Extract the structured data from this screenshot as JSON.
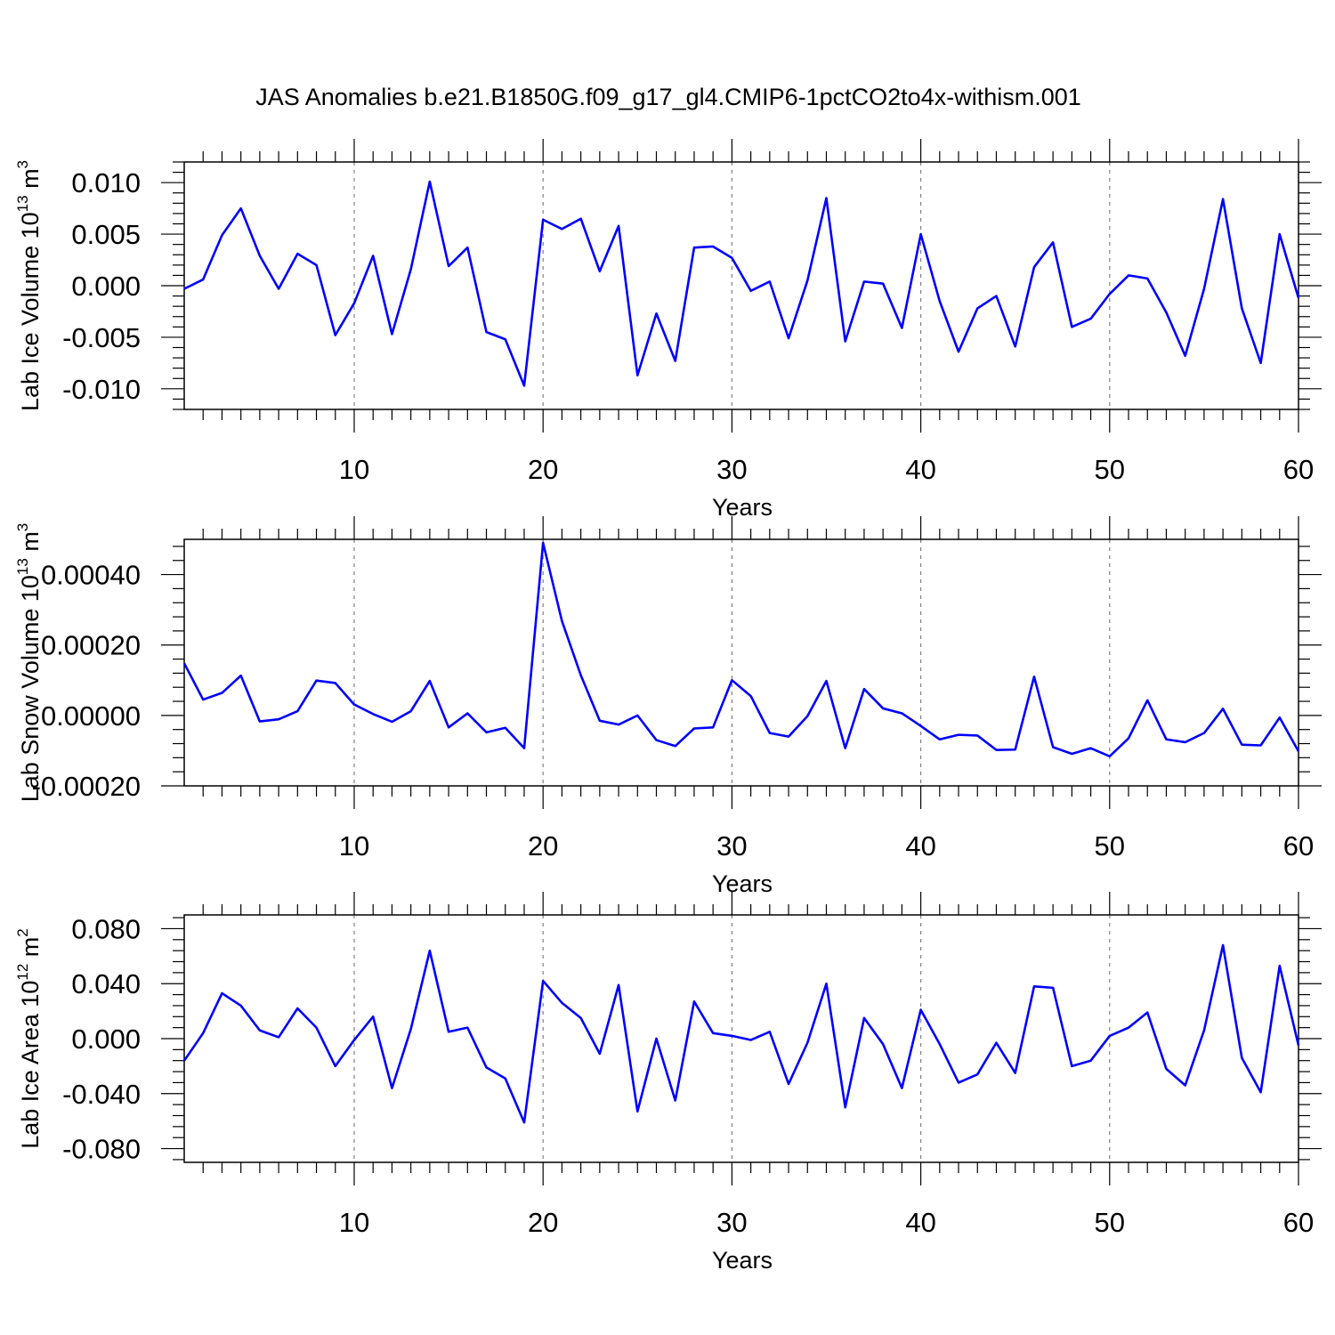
{
  "title": "JAS Anomalies b.e21.B1850G.f09_g17_gl4.CMIP6-1pctCO2to4x-withism.001",
  "colors": {
    "line": "#0000ff",
    "axis": "#000000",
    "grid": "#808080"
  },
  "chart_data": [
    {
      "type": "line",
      "ylabel": "Lab Ice Volume 10",
      "ylabel_sup": "13",
      "ylabel_unit": " m",
      "ylabel_unit_sup": "3",
      "xlabel": "Years",
      "xlim": [
        1,
        60
      ],
      "ylim": [
        -0.012,
        0.012
      ],
      "yticks": [
        -0.01,
        -0.005,
        0.0,
        0.005,
        0.01
      ],
      "ytick_labels": [
        "-0.010",
        "-0.005",
        "0.000",
        "0.005",
        "0.010"
      ],
      "xticks": [
        10,
        20,
        30,
        40,
        50,
        60
      ],
      "xtick_labels": [
        "10",
        "20",
        "30",
        "40",
        "50",
        "60"
      ],
      "grid_x": true,
      "series": [
        {
          "name": "Lab Ice Volume",
          "x_start": 1,
          "values": [
            -0.0003,
            0.0006,
            0.0049,
            0.0075,
            0.0029,
            -0.0003,
            0.0031,
            0.002,
            -0.0048,
            -0.0017,
            0.0029,
            -0.0047,
            0.0016,
            0.0101,
            0.0019,
            0.0037,
            -0.0045,
            -0.0052,
            -0.0097,
            0.0064,
            0.0055,
            0.0065,
            0.0014,
            0.0058,
            -0.0087,
            -0.0027,
            -0.0073,
            0.0037,
            0.0038,
            0.0027,
            -0.0005,
            0.0004,
            -0.0051,
            0.0005,
            0.0085,
            -0.0054,
            0.0004,
            0.0002,
            -0.0041,
            0.005,
            -0.0015,
            -0.0064,
            -0.0022,
            -0.001,
            -0.0059,
            0.0018,
            0.0042,
            -0.004,
            -0.0032,
            -0.0008,
            0.001,
            0.0007,
            -0.0026,
            -0.0068,
            -0.0003,
            0.0084,
            -0.0022,
            -0.0075,
            0.005,
            -0.0012
          ]
        }
      ]
    },
    {
      "type": "line",
      "ylabel": "Lab Snow Volume 10",
      "ylabel_sup": "13",
      "ylabel_unit": " m",
      "ylabel_unit_sup": "3",
      "xlabel": "Years",
      "xlim": [
        1,
        60
      ],
      "ylim": [
        -0.0002,
        0.0005
      ],
      "yticks": [
        -0.0002,
        0.0,
        0.0002,
        0.0004
      ],
      "ytick_labels": [
        "-0.00020",
        "0.00000",
        "0.00020",
        "0.00040"
      ],
      "xticks": [
        10,
        20,
        30,
        40,
        50,
        60
      ],
      "xtick_labels": [
        "10",
        "20",
        "30",
        "40",
        "50",
        "60"
      ],
      "grid_x": true,
      "series": [
        {
          "name": "Lab Snow Volume",
          "x_start": 1,
          "values": [
            0.000148,
            4.5e-05,
            6.4e-05,
            0.000113,
            -1.7e-05,
            -1.1e-05,
            1.2e-05,
            9.9e-05,
            9.2e-05,
            3.1e-05,
            4e-06,
            -1.8e-05,
            1.2e-05,
            9.8e-05,
            -3.4e-05,
            6e-06,
            -4.8e-05,
            -3.5e-05,
            -9.3e-05,
            0.00049,
            0.000268,
            0.000114,
            -1.5e-05,
            -2.6e-05,
            0.0,
            -7e-05,
            -8.7e-05,
            -3.7e-05,
            -3.4e-05,
            0.0001,
            5.5e-05,
            -5e-05,
            -6e-05,
            -2e-06,
            9.8e-05,
            -9.3e-05,
            7.5e-05,
            2e-05,
            6e-06,
            -3e-05,
            -6.8e-05,
            -5.5e-05,
            -5.7e-05,
            -9.8e-05,
            -9.7e-05,
            0.00011,
            -9e-05,
            -0.000109,
            -9.3e-05,
            -0.000116,
            -6.5e-05,
            4.3e-05,
            -6.8e-05,
            -7.6e-05,
            -5e-05,
            1.9e-05,
            -8.3e-05,
            -8.5e-05,
            -6e-06,
            -0.000102
          ]
        }
      ]
    },
    {
      "type": "line",
      "ylabel": "Lab Ice Area 10",
      "ylabel_sup": "12",
      "ylabel_unit": " m",
      "ylabel_unit_sup": "2",
      "xlabel": "Years",
      "xlim": [
        1,
        60
      ],
      "ylim": [
        -0.09,
        0.09
      ],
      "yticks": [
        -0.08,
        -0.04,
        0.0,
        0.04,
        0.08
      ],
      "ytick_labels": [
        "-0.080",
        "-0.040",
        "0.000",
        "0.040",
        "0.080"
      ],
      "xticks": [
        10,
        20,
        30,
        40,
        50,
        60
      ],
      "xtick_labels": [
        "10",
        "20",
        "30",
        "40",
        "50",
        "60"
      ],
      "grid_x": true,
      "series": [
        {
          "name": "Lab Ice Area",
          "x_start": 1,
          "values": [
            -0.016,
            0.004,
            0.033,
            0.024,
            0.006,
            0.001,
            0.022,
            0.008,
            -0.02,
            -0.001,
            0.016,
            -0.036,
            0.007,
            0.064,
            0.005,
            0.008,
            -0.021,
            -0.029,
            -0.061,
            0.042,
            0.026,
            0.015,
            -0.011,
            0.039,
            -0.053,
            0.0,
            -0.045,
            0.027,
            0.004,
            0.002,
            -0.001,
            0.005,
            -0.033,
            -0.003,
            0.04,
            -0.05,
            0.015,
            -0.004,
            -0.036,
            0.021,
            -0.004,
            -0.032,
            -0.026,
            -0.003,
            -0.025,
            0.038,
            0.037,
            -0.02,
            -0.016,
            0.002,
            0.008,
            0.019,
            -0.022,
            -0.034,
            0.006,
            0.068,
            -0.014,
            -0.039,
            0.053,
            -0.005
          ]
        }
      ]
    }
  ]
}
